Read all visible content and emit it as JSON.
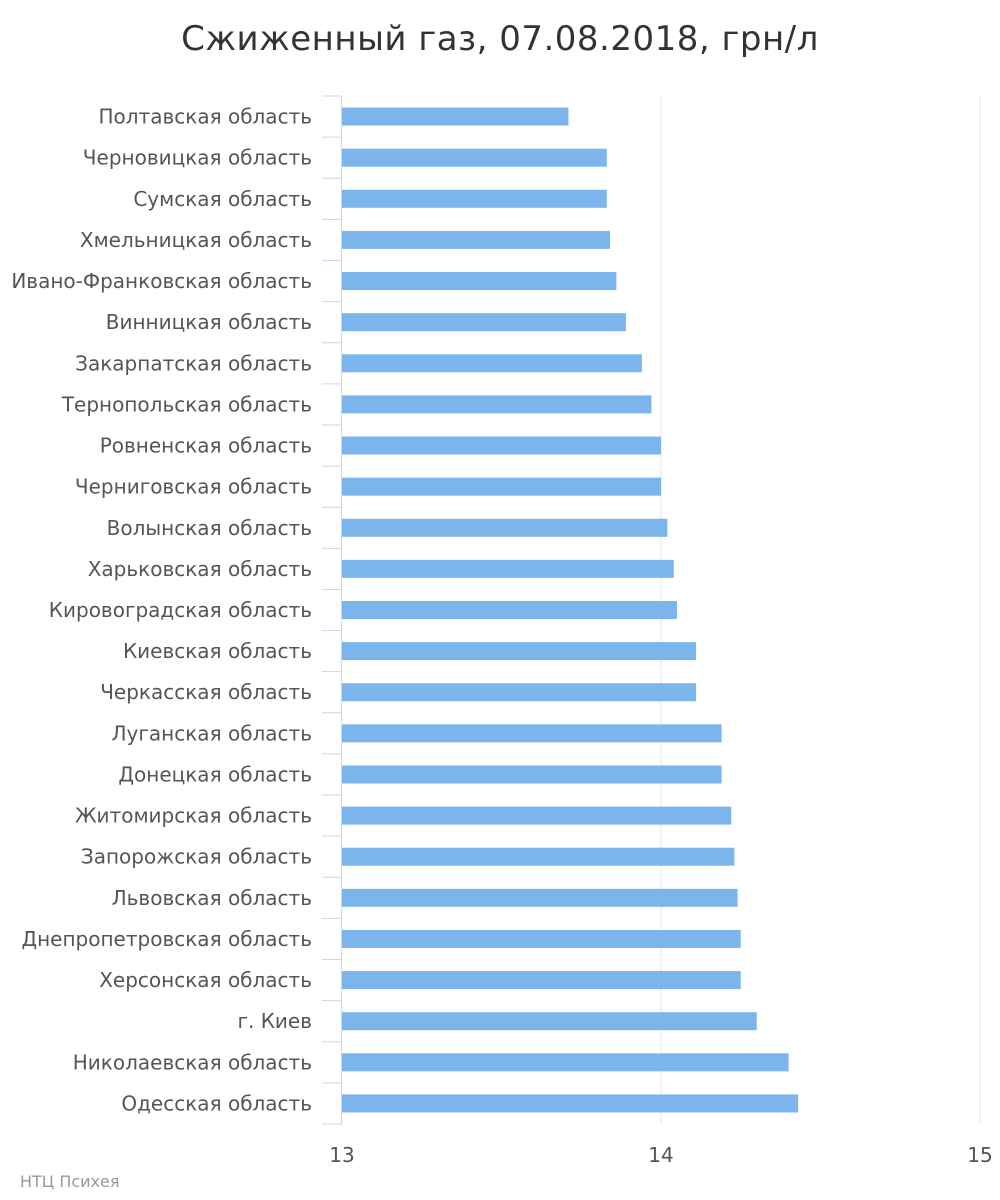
{
  "chart_data": {
    "type": "bar",
    "orientation": "horizontal",
    "title": "Сжиженный газ, 07.08.2018, грн/л",
    "xlabel": "",
    "ylabel": "",
    "xlim": [
      13,
      15
    ],
    "ticks": [
      "13",
      "14",
      "15"
    ],
    "tick_values": [
      13,
      14,
      15
    ],
    "grid": true,
    "bar_color": "#7cb5ec",
    "categories": [
      "Полтавская область",
      "Черновицкая область",
      "Сумская область",
      "Хмельницкая область",
      "Ивано-Франковская область",
      "Винницкая область",
      "Закарпатская область",
      "Тернопольская область",
      "Ровненская область",
      "Черниговская область",
      "Волынская область",
      "Харьковская область",
      "Кировоградская область",
      "Киевская область",
      "Черкасская область",
      "Луганская область",
      "Донецкая область",
      "Житомирская область",
      "Запорожская область",
      "Львовская область",
      "Днепропетровская область",
      "Херсонская область",
      "г. Киев",
      "Николаевская область",
      "Одесская область"
    ],
    "values": [
      13.71,
      13.83,
      13.83,
      13.84,
      13.86,
      13.89,
      13.94,
      13.97,
      14.0,
      14.0,
      14.02,
      14.04,
      14.05,
      14.11,
      14.11,
      14.19,
      14.19,
      14.22,
      14.23,
      14.24,
      14.25,
      14.25,
      14.3,
      14.4,
      14.43
    ]
  },
  "credit": "НТЦ Психея"
}
